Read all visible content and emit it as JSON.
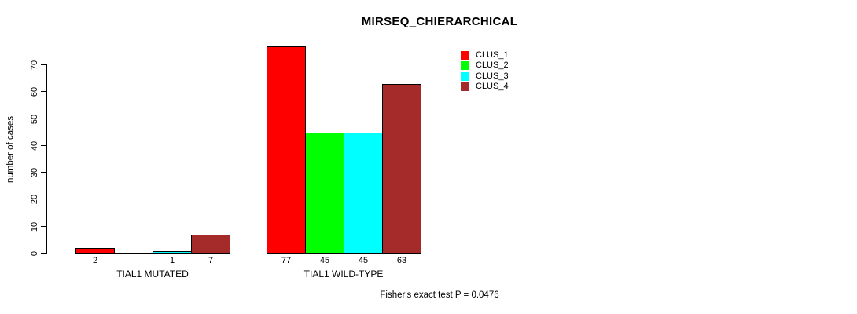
{
  "chart_data": {
    "type": "bar",
    "title": "MIRSEQ_CHIERARCHICAL",
    "ylabel": "number of cases",
    "xlabel": "",
    "ylim": [
      0,
      70
    ],
    "yticks": [
      0,
      10,
      20,
      30,
      40,
      50,
      60,
      70
    ],
    "grid": false,
    "categories": [
      "TIAL1 MUTATED",
      "TIAL1 WILD-TYPE"
    ],
    "series": [
      {
        "name": "CLUS_1",
        "color": "#ff0000",
        "values": [
          2,
          77
        ]
      },
      {
        "name": "CLUS_2",
        "color": "#00ff00",
        "values": [
          0,
          45
        ]
      },
      {
        "name": "CLUS_3",
        "color": "#00ffff",
        "values": [
          1,
          45
        ]
      },
      {
        "name": "CLUS_4",
        "color": "#a52a2a",
        "values": [
          7,
          63
        ]
      }
    ],
    "bar_value_labels": [
      [
        "2",
        "",
        "1",
        "7"
      ],
      [
        "77",
        "45",
        "45",
        "63"
      ]
    ],
    "legend": {
      "position": "top-right",
      "entries": [
        "CLUS_1",
        "CLUS_2",
        "CLUS_3",
        "CLUS_4"
      ]
    },
    "annotation": "Fisher's exact test P = 0.0476",
    "colors": {
      "background": "#ffffff",
      "axis": "#000000",
      "text": "#000000"
    }
  }
}
